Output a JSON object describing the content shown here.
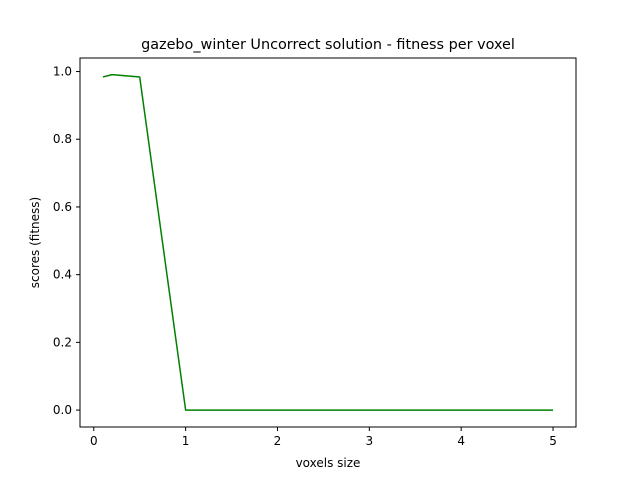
{
  "chart_data": {
    "type": "line",
    "title": "gazebo_winter Uncorrect solution - fitness per voxel",
    "xlabel": "voxels size",
    "ylabel": "scores (fitness)",
    "xlim": [
      -0.15,
      5.25
    ],
    "ylim": [
      -0.05,
      1.04
    ],
    "xticks": [
      0,
      1,
      2,
      3,
      4,
      5
    ],
    "yticks": [
      0.0,
      0.2,
      0.4,
      0.6,
      0.8,
      1.0
    ],
    "xtick_labels": [
      "0",
      "1",
      "2",
      "3",
      "4",
      "5"
    ],
    "ytick_labels": [
      "0.0",
      "0.2",
      "0.4",
      "0.6",
      "0.8",
      "1.0"
    ],
    "grid": false,
    "series": [
      {
        "color": "#008000",
        "x": [
          0.1,
          0.2,
          0.5,
          1.0,
          1.5,
          2.0,
          2.5,
          3.0,
          3.5,
          4.0,
          4.5,
          5.0
        ],
        "y": [
          0.984,
          0.991,
          0.984,
          0.0,
          0.0,
          0.0,
          0.0,
          0.0,
          0.0,
          0.0,
          0.0,
          0.0
        ]
      }
    ]
  }
}
